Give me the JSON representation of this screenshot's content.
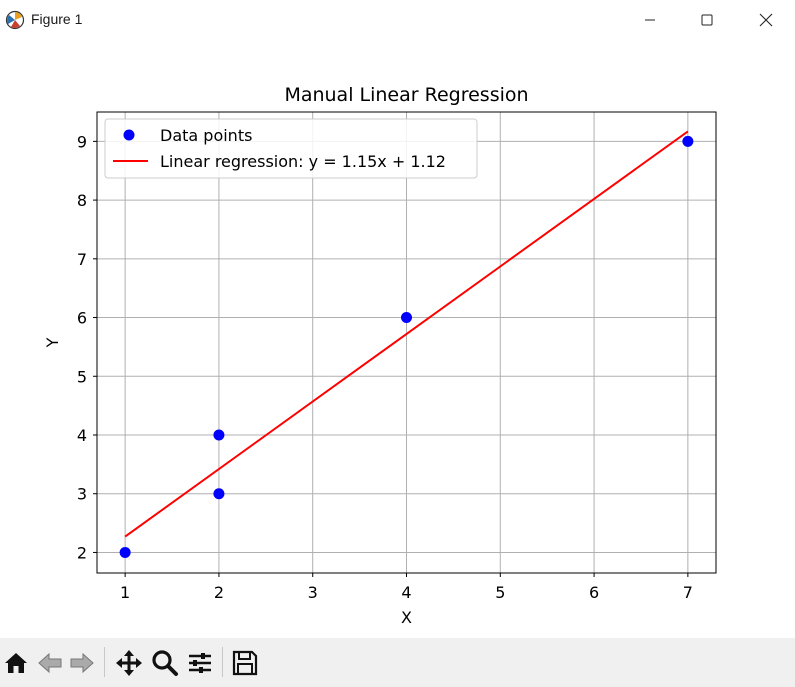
{
  "window": {
    "title": "Figure 1",
    "icons": [
      "figure-app-icon",
      "minimize-icon",
      "maximize-icon",
      "close-icon"
    ]
  },
  "toolbar": {
    "buttons": [
      "home-icon",
      "back-icon",
      "forward-icon",
      "pan-icon",
      "zoom-icon",
      "configure-subplots-icon",
      "save-icon"
    ]
  },
  "colors": {
    "points": "#0000ff",
    "line": "#ff0000",
    "grid": "#b0b0b0",
    "toolbar_bg": "#f0f0f0"
  },
  "chart_data": {
    "type": "scatter",
    "title": "Manual Linear Regression",
    "xlabel": "X",
    "ylabel": "Y",
    "xlim": [
      0.7,
      7.3
    ],
    "ylim": [
      1.65,
      9.5
    ],
    "xticks": [
      1,
      2,
      3,
      4,
      5,
      6,
      7
    ],
    "yticks": [
      2,
      3,
      4,
      5,
      6,
      7,
      8,
      9
    ],
    "grid": true,
    "legend_position": "upper left",
    "series": [
      {
        "name": "Data points",
        "kind": "scatter",
        "color": "#0000ff",
        "x": [
          1,
          2,
          2,
          4,
          7
        ],
        "y": [
          2,
          4,
          3,
          6,
          9
        ]
      },
      {
        "name": "Linear regression: y = 1.15x + 1.12",
        "kind": "line",
        "color": "#ff0000",
        "x": [
          1,
          7
        ],
        "y": [
          2.27,
          9.17
        ]
      }
    ]
  }
}
